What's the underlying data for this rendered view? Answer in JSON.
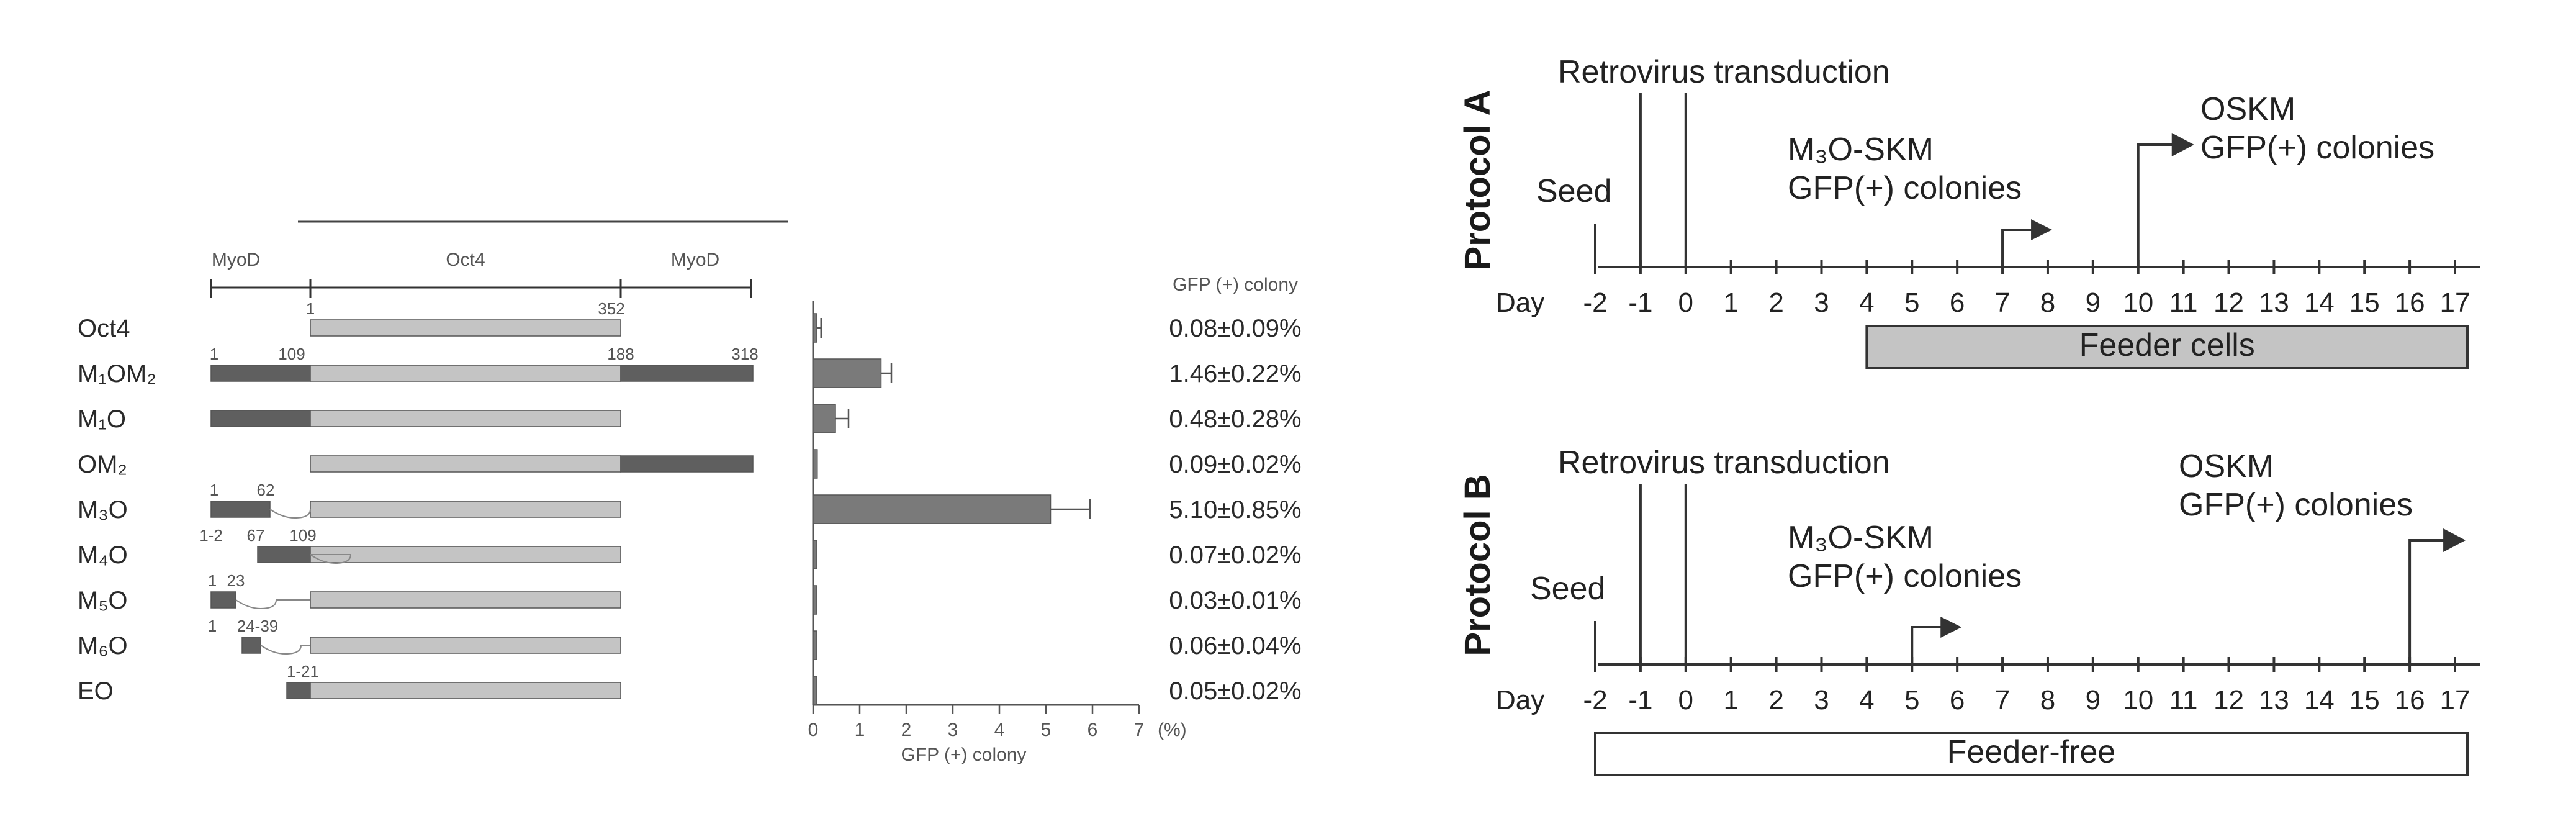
{
  "left_panel": {
    "domain_headers": [
      "MyoD",
      "Oct4",
      "MyoD"
    ],
    "bracket_positions": {
      "start": "1",
      "end": "352"
    },
    "colony_header": "GFP (+) colony",
    "rows": [
      {
        "name": "Oct4",
        "numbers": [
          "1",
          "352"
        ],
        "gfp_text": "0.08±0.09%",
        "value": 0.08,
        "error": 0.09
      },
      {
        "name": "M₁OM₂",
        "numbers": [
          "1",
          "109",
          "188",
          "318"
        ],
        "gfp_text": "1.46±0.22%",
        "value": 1.46,
        "error": 0.22
      },
      {
        "name": "M₁O",
        "numbers": [],
        "gfp_text": "0.48±0.28%",
        "value": 0.48,
        "error": 0.28
      },
      {
        "name": "OM₂",
        "numbers": [],
        "gfp_text": "0.09±0.02%",
        "value": 0.09,
        "error": 0.02
      },
      {
        "name": "M₃O",
        "numbers": [
          "1",
          "62"
        ],
        "gfp_text": "5.10±0.85%",
        "value": 5.1,
        "error": 0.85
      },
      {
        "name": "M₄O",
        "numbers": [
          "1-2",
          "67",
          "109"
        ],
        "gfp_text": "0.07±0.02%",
        "value": 0.07,
        "error": 0.02
      },
      {
        "name": "M₅O",
        "numbers": [
          "1",
          "23"
        ],
        "gfp_text": "0.03±0.01%",
        "value": 0.03,
        "error": 0.01
      },
      {
        "name": "M₆O",
        "numbers": [
          "1",
          "24-39"
        ],
        "gfp_text": "0.06±0.04%",
        "value": 0.06,
        "error": 0.04
      },
      {
        "name": "EO",
        "numbers": [
          "1-21"
        ],
        "gfp_text": "0.05±0.02%",
        "value": 0.05,
        "error": 0.02
      }
    ]
  },
  "chart_data": {
    "type": "bar",
    "categories": [
      "Oct4",
      "M₁OM₂",
      "M₁O",
      "OM₂",
      "M₃O",
      "M₄O",
      "M₅O",
      "M₆O",
      "EO"
    ],
    "values": [
      0.08,
      1.46,
      0.48,
      0.09,
      5.1,
      0.07,
      0.03,
      0.06,
      0.05
    ],
    "errors": [
      0.09,
      0.22,
      0.28,
      0.02,
      0.85,
      0.02,
      0.01,
      0.04,
      0.02
    ],
    "xlabel": "GFP (+) colony",
    "x_unit": "(%)",
    "xlim": [
      0,
      7
    ],
    "x_ticks": [
      "0",
      "1",
      "2",
      "3",
      "4",
      "5",
      "6",
      "7"
    ],
    "orientation": "horizontal"
  },
  "timeline_ticks": [
    "-2",
    "-1",
    "0",
    "1",
    "2",
    "3",
    "4",
    "5",
    "6",
    "7",
    "8",
    "9",
    "10",
    "11",
    "12",
    "13",
    "14",
    "15",
    "16",
    "17"
  ],
  "protocols": [
    {
      "label": "Protocol A",
      "day_label": "Day",
      "transduction": "Retrovirus transduction",
      "seed": "Seed",
      "m3o_line1": "M₃O-SKM",
      "m3o_line2": "GFP(+) colonies",
      "oskm_line1": "OSKM",
      "oskm_line2": "GFP(+) colonies",
      "bar_label": "Feeder cells",
      "bar_from_day": 4,
      "bar_to_day": 17,
      "m3o_day": 7,
      "oskm_day": 10,
      "bar_fill": "#c4c4c4"
    },
    {
      "label": "Protocol B",
      "day_label": "Day",
      "transduction": "Retrovirus transduction",
      "seed": "Seed",
      "m3o_line1": "M₃O-SKM",
      "m3o_line2": "GFP(+) colonies",
      "oskm_line1": "OSKM",
      "oskm_line2": "GFP(+) colonies",
      "bar_label": "Feeder-free",
      "bar_from_day": -2,
      "bar_to_day": 17,
      "m3o_day": 5,
      "oskm_day": 16,
      "bar_fill": "#ffffff"
    }
  ],
  "colors": {
    "oct4_domain": "#c4c4c4",
    "myod_domain": "#5f5f5f",
    "bar": "#7a7a7a",
    "line": "#333333"
  }
}
